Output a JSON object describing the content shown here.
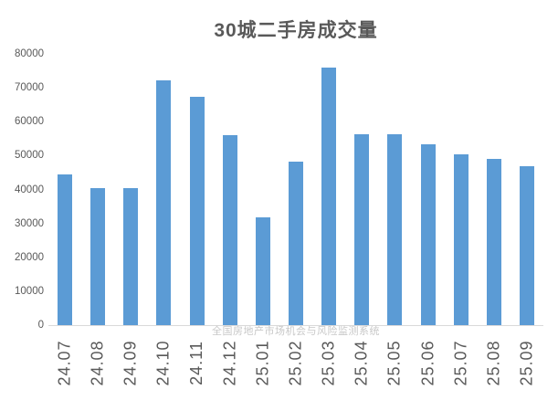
{
  "chart_data": {
    "type": "bar",
    "title": "30城二手房成交量",
    "categories": [
      "24.07",
      "24.08",
      "24.09",
      "24.10",
      "24.11",
      "24.12",
      "25.01",
      "25.02",
      "25.03",
      "25.04",
      "25.05",
      "25.06",
      "25.07",
      "25.08",
      "25.09"
    ],
    "values": [
      44400,
      40500,
      40500,
      72300,
      67300,
      55900,
      31800,
      48300,
      76000,
      56200,
      56200,
      53300,
      50500,
      48900,
      46900
    ],
    "xlabel": "",
    "ylabel": "",
    "ylim": [
      0,
      80000
    ],
    "y_ticks": [
      0,
      10000,
      20000,
      30000,
      40000,
      50000,
      60000,
      70000,
      80000
    ],
    "x_tick_rotation": -90,
    "grid": false,
    "legend": "none",
    "bar_color": "#5B9BD5"
  },
  "watermark": {
    "text": "全国房地产市场机会与风险监测系统"
  },
  "colors": {
    "bar": "#5B9BD5",
    "axis_line": "#D9D9D9",
    "tick_text": "#595959",
    "title_text": "#595959",
    "watermark_text": "#C8C8C8",
    "background": "#FFFFFF"
  }
}
